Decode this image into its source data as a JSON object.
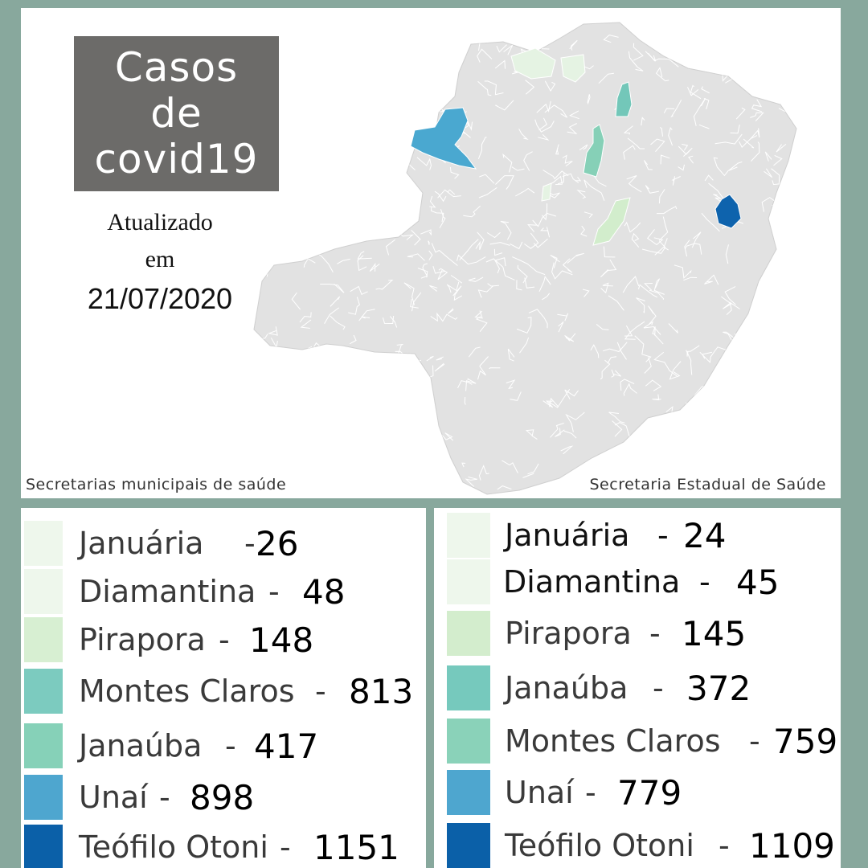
{
  "map": {
    "title_lines": [
      "Casos",
      "de",
      "covid19"
    ],
    "updated_word": "Atualizado",
    "updated_prep": "em",
    "updated_date": "21/07/2020",
    "state_color": "#e2e2e2",
    "border_color": "#ffffff",
    "regions": [
      {
        "name": "Januária",
        "color": "#e5f3e3"
      },
      {
        "name": "Diamantina",
        "color": "#e5f3e3"
      },
      {
        "name": "Pirapora",
        "color": "#d2edcc"
      },
      {
        "name": "Janaúba",
        "color": "#73c7b9"
      },
      {
        "name": "Montes Claros",
        "color": "#86d0b7"
      },
      {
        "name": "Unaí",
        "color": "#4aa8d0"
      },
      {
        "name": "Teófilo Otoni",
        "color": "#0e63ad"
      }
    ]
  },
  "sources": {
    "left": "Secretarias municipais de saúde",
    "right": "Secretaria Estadual de Saúde"
  },
  "legend_left": {
    "entries": [
      {
        "name": "Januária",
        "value": "26",
        "color": "#eef7ec"
      },
      {
        "name": "Diamantina",
        "value": "48",
        "color": "#eef7ec"
      },
      {
        "name": "Pirapora",
        "value": "148",
        "color": "#d7efd2"
      },
      {
        "name": "Montes Claros",
        "value": "813",
        "color": "#7ccbbf"
      },
      {
        "name": "Janaúba",
        "value": "417",
        "color": "#86d1b8"
      },
      {
        "name": "Unaí",
        "value": "898",
        "color": "#4ea6cf"
      },
      {
        "name": "Teófilo Otoni",
        "value": "1151",
        "color": "#0b60a8"
      }
    ]
  },
  "legend_right": {
    "entries": [
      {
        "name": "Januária",
        "value": "24",
        "color": "#eef7ec"
      },
      {
        "name": "Diamantina",
        "value": "45",
        "color": "#eef7ec"
      },
      {
        "name": "Pirapora",
        "value": "145",
        "color": "#d3edcd"
      },
      {
        "name": "Janaúba",
        "value": "372",
        "color": "#76c9bd"
      },
      {
        "name": "Montes Claros",
        "value": "759",
        "color": "#8ad2b9"
      },
      {
        "name": "Unaí",
        "value": "779",
        "color": "#4ea6cf"
      },
      {
        "name": "Teófilo Otoni",
        "value": "1109",
        "color": "#0b60a8"
      }
    ]
  }
}
